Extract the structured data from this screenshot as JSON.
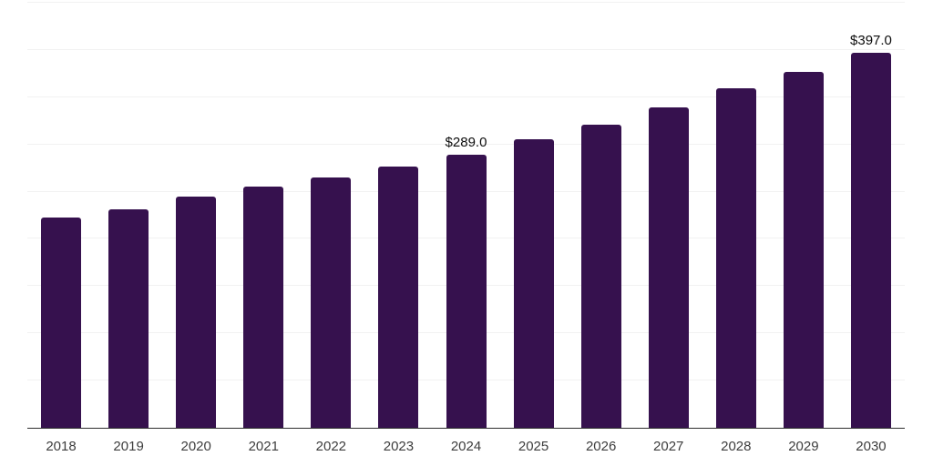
{
  "chart_data": {
    "type": "bar",
    "title": "",
    "xlabel": "",
    "ylabel": "",
    "categories": [
      "2018",
      "2019",
      "2020",
      "2021",
      "2022",
      "2023",
      "2024",
      "2025",
      "2026",
      "2027",
      "2028",
      "2029",
      "2030"
    ],
    "values": [
      223,
      231,
      245,
      255,
      265,
      277,
      289,
      305,
      321,
      339,
      359,
      377,
      397
    ],
    "data_labels": {
      "2024": "$289.0",
      "2030": "$397.0"
    },
    "ylim": [
      0,
      450
    ],
    "gridline_step": 50,
    "grid": "horizontal-only",
    "y_axis_tick_labels_visible": false,
    "legend_position": "none",
    "colors": {
      "bar": "#36114E",
      "gridline": "#f2f2f2",
      "axis_line": "#2e2e2e",
      "tick_label": "#3d3d3d",
      "value_label": "#0d0d0d",
      "background": "#ffffff"
    }
  }
}
